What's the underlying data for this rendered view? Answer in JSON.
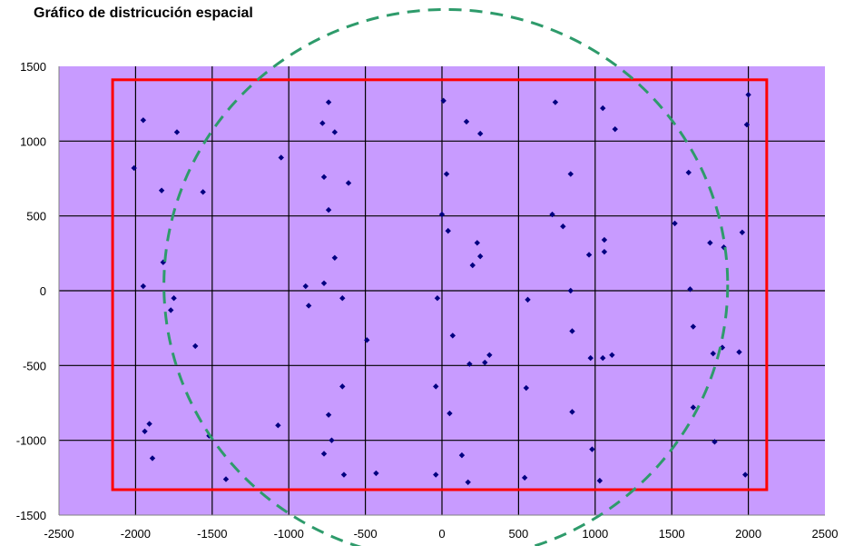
{
  "chart_data": {
    "type": "scatter",
    "title": "Gráfico de districución espacial",
    "xlabel": "",
    "ylabel": "",
    "xlim": [
      -2500,
      2500
    ],
    "ylim": [
      -1500,
      1500
    ],
    "x_ticks": [
      -2500,
      -2000,
      -1500,
      -1000,
      -500,
      0,
      500,
      1000,
      1500,
      2000,
      2500
    ],
    "y_ticks": [
      -1500,
      -1000,
      -500,
      0,
      500,
      1000,
      1500
    ],
    "grid": true,
    "colors": {
      "plot_background": "#c89bff",
      "grid": "#000000",
      "points": "#000080",
      "rectangle": "#ff0000",
      "circle": "#2e9b6b"
    },
    "overlays": {
      "rectangle": {
        "x_min": -2150,
        "x_max": 2120,
        "y_min": -1330,
        "y_max": 1410
      },
      "circle": {
        "cx": 25,
        "cy": 40,
        "r": 1840
      }
    },
    "series": [
      {
        "points": [
          [
            -1950,
            1140
          ],
          [
            -1730,
            1060
          ],
          [
            -2010,
            820
          ],
          [
            -1830,
            670
          ],
          [
            -1560,
            660
          ],
          [
            -1820,
            190
          ],
          [
            -1950,
            30
          ],
          [
            -1750,
            -50
          ],
          [
            -1770,
            -130
          ],
          [
            -1610,
            -370
          ],
          [
            -1520,
            -970
          ],
          [
            -1940,
            -940
          ],
          [
            -1910,
            -890
          ],
          [
            -1890,
            -1120
          ],
          [
            -1410,
            -1260
          ],
          [
            -740,
            1260
          ],
          [
            -780,
            1120
          ],
          [
            -700,
            1060
          ],
          [
            -1050,
            890
          ],
          [
            -770,
            760
          ],
          [
            -610,
            720
          ],
          [
            -740,
            540
          ],
          [
            -700,
            220
          ],
          [
            -890,
            30
          ],
          [
            -770,
            50
          ],
          [
            -870,
            -100
          ],
          [
            -650,
            -50
          ],
          [
            -490,
            -330
          ],
          [
            -650,
            -640
          ],
          [
            -740,
            -830
          ],
          [
            -720,
            -1000
          ],
          [
            -770,
            -1090
          ],
          [
            -640,
            -1230
          ],
          [
            -1070,
            -900
          ],
          [
            -430,
            -1220
          ],
          [
            10,
            1270
          ],
          [
            160,
            1130
          ],
          [
            250,
            1050
          ],
          [
            30,
            780
          ],
          [
            0,
            510
          ],
          [
            40,
            400
          ],
          [
            230,
            320
          ],
          [
            250,
            230
          ],
          [
            200,
            170
          ],
          [
            -30,
            -50
          ],
          [
            70,
            -300
          ],
          [
            310,
            -430
          ],
          [
            280,
            -480
          ],
          [
            180,
            -490
          ],
          [
            -40,
            -640
          ],
          [
            50,
            -820
          ],
          [
            130,
            -1100
          ],
          [
            -40,
            -1230
          ],
          [
            170,
            -1280
          ],
          [
            550,
            -650
          ],
          [
            560,
            -60
          ],
          [
            540,
            -1250
          ],
          [
            740,
            1260
          ],
          [
            1050,
            1220
          ],
          [
            1130,
            1080
          ],
          [
            840,
            780
          ],
          [
            720,
            510
          ],
          [
            790,
            430
          ],
          [
            1060,
            340
          ],
          [
            1060,
            260
          ],
          [
            960,
            240
          ],
          [
            840,
            0
          ],
          [
            850,
            -270
          ],
          [
            1110,
            -430
          ],
          [
            1050,
            -450
          ],
          [
            970,
            -450
          ],
          [
            850,
            -810
          ],
          [
            980,
            -1060
          ],
          [
            1030,
            -1270
          ],
          [
            1610,
            790
          ],
          [
            1520,
            450
          ],
          [
            1750,
            320
          ],
          [
            1840,
            290
          ],
          [
            1960,
            390
          ],
          [
            1620,
            10
          ],
          [
            1640,
            -240
          ],
          [
            1830,
            -380
          ],
          [
            1770,
            -420
          ],
          [
            1940,
            -410
          ],
          [
            1640,
            -780
          ],
          [
            1780,
            -1010
          ],
          [
            1980,
            -1230
          ],
          [
            2000,
            1310
          ],
          [
            1990,
            1110
          ]
        ]
      }
    ]
  }
}
